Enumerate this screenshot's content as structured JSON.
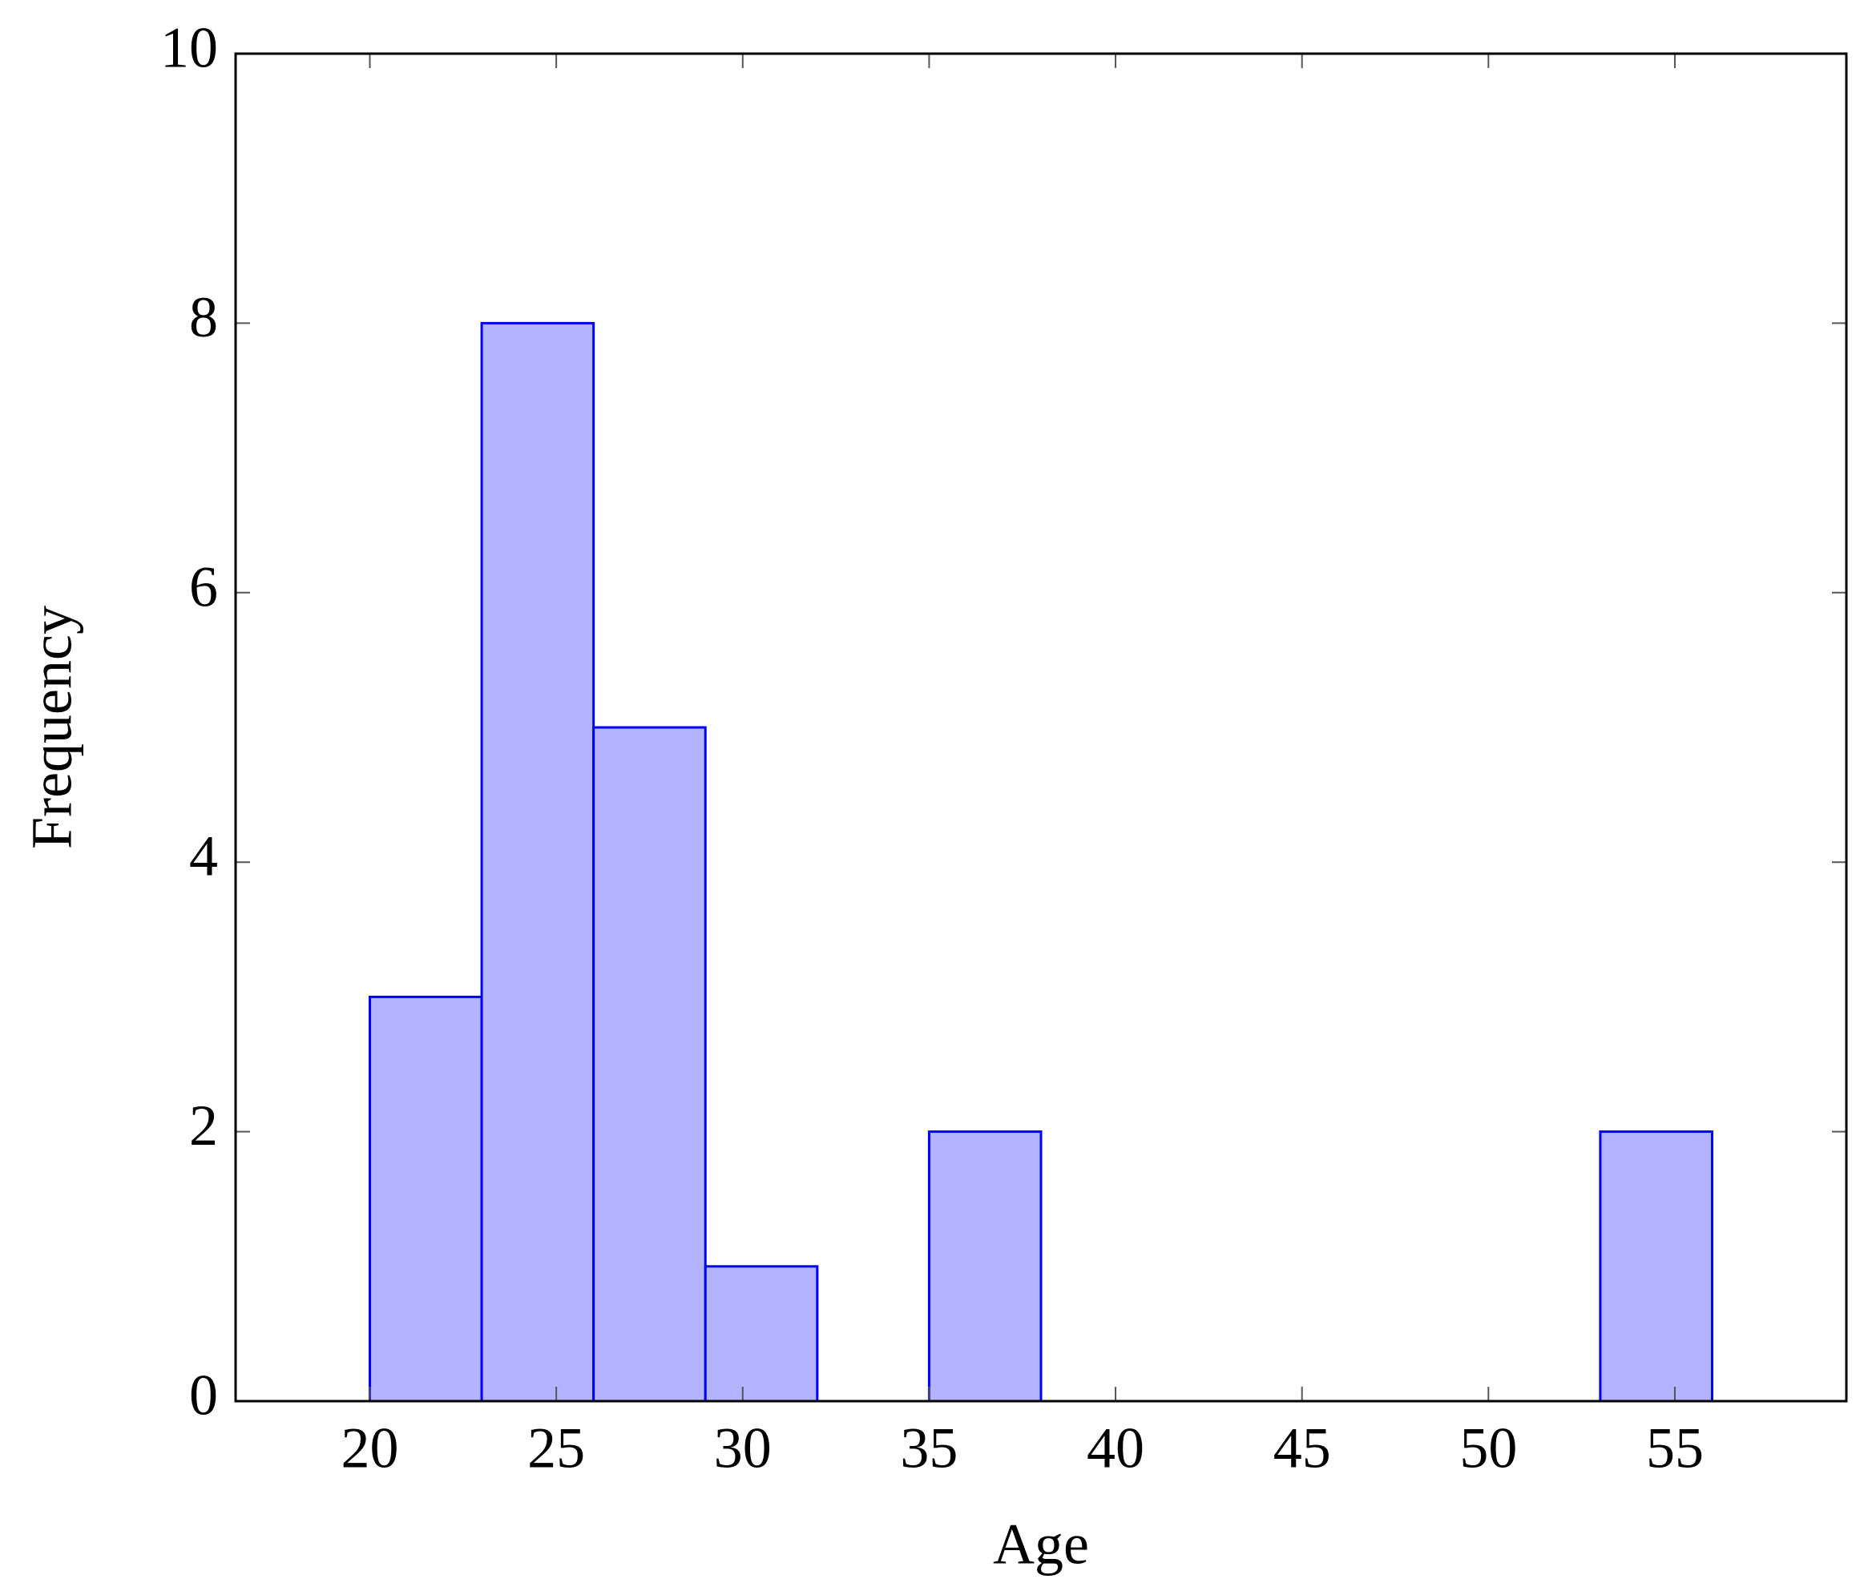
{
  "chart_data": {
    "type": "histogram",
    "x_label": "Age",
    "y_label": "Frequency",
    "bins": [
      20,
      23,
      26,
      29,
      32,
      35,
      38,
      41,
      44,
      47,
      50,
      53,
      56
    ],
    "values": [
      3,
      8,
      5,
      1,
      0,
      2,
      0,
      0,
      0,
      0,
      0,
      2
    ],
    "color": "#b3b3ff",
    "edge_color": "#0000ff",
    "xlim": [
      16.4,
      59.6
    ],
    "xticks": [
      20,
      25,
      30,
      35,
      40,
      45,
      50,
      55
    ],
    "ylim": [
      0,
      10
    ],
    "yticks": [
      0,
      2,
      4,
      6,
      8,
      10
    ],
    "grid": false
  }
}
